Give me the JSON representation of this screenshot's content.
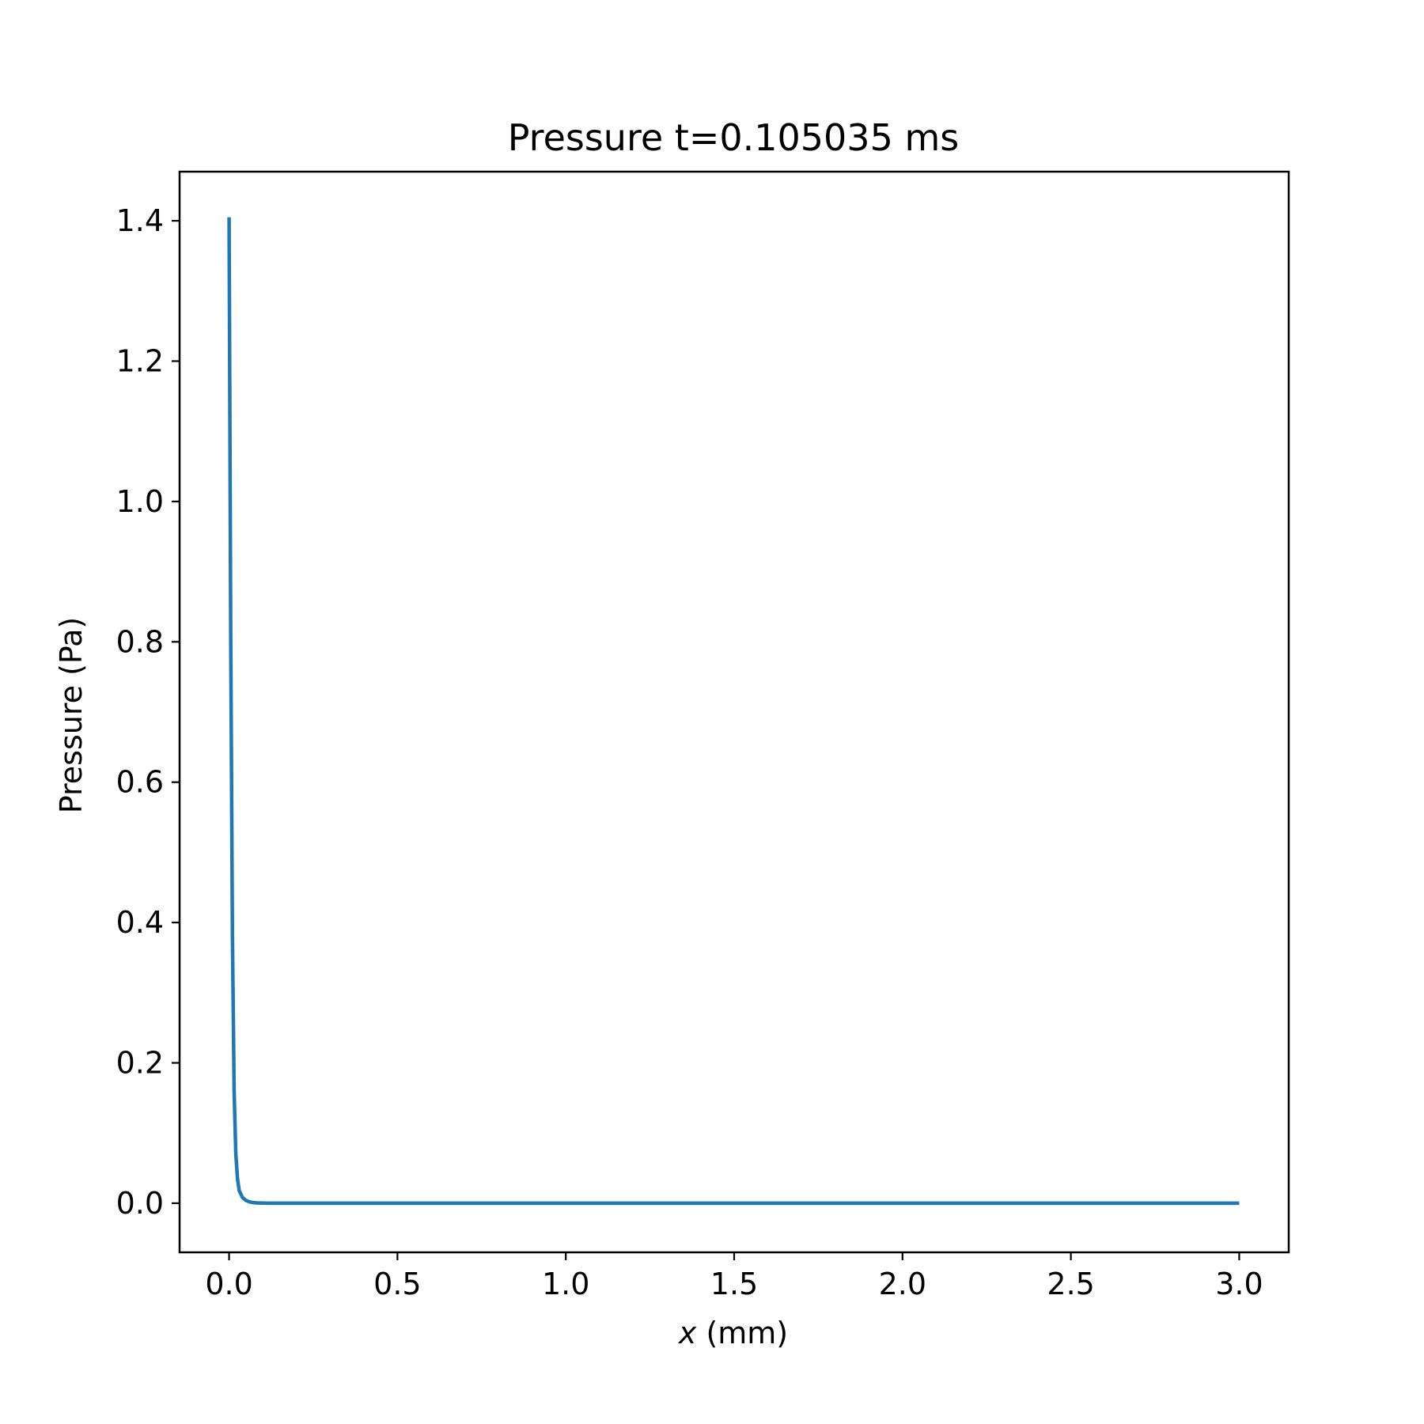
{
  "chart_data": {
    "type": "line",
    "title": "Pressure t=0.105035 ms",
    "xlabel_var": "x",
    "xlabel_rest": " (mm)",
    "ylabel": "Pressure (Pa)",
    "xlim": [
      -0.147,
      3.147
    ],
    "ylim": [
      -0.07,
      1.47
    ],
    "xticks": [
      0.0,
      0.5,
      1.0,
      1.5,
      2.0,
      2.5,
      3.0
    ],
    "xtick_labels": [
      "0.0",
      "0.5",
      "1.0",
      "1.5",
      "2.0",
      "2.5",
      "3.0"
    ],
    "yticks": [
      0.0,
      0.2,
      0.4,
      0.6,
      0.8,
      1.0,
      1.2,
      1.4
    ],
    "ytick_labels": [
      "0.0",
      "0.2",
      "0.4",
      "0.6",
      "0.8",
      "1.0",
      "1.2",
      "1.4"
    ],
    "grid": false,
    "series": [
      {
        "color": "#1f77b4",
        "x": [
          0.0,
          0.005,
          0.01,
          0.015,
          0.02,
          0.025,
          0.03,
          0.04,
          0.05,
          0.06,
          0.07,
          0.08,
          0.09,
          0.1,
          0.12,
          0.15,
          0.2,
          0.5,
          1.0,
          1.5,
          2.0,
          2.5,
          3.0
        ],
        "y": [
          1.405,
          0.8,
          0.38,
          0.16,
          0.07,
          0.035,
          0.018,
          0.008,
          0.004,
          0.002,
          0.001,
          0.0005,
          0.0003,
          0.0002,
          0.0001,
          0.0,
          0.0,
          0.0,
          0.0,
          0.0,
          0.0,
          0.0,
          0.0
        ]
      }
    ]
  }
}
